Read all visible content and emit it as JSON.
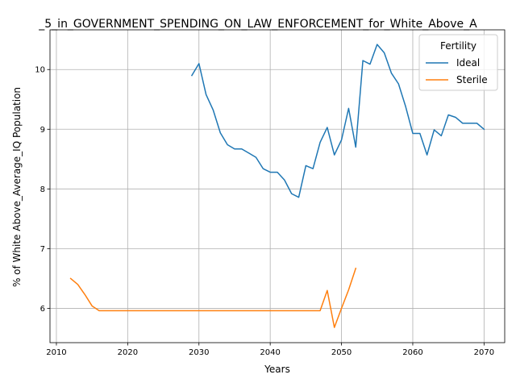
{
  "chart_data": {
    "type": "line",
    "title": "_5_in_GOVERNMENT_SPENDING_ON_LAW_ENFORCEMENT_for_White_Above_A",
    "xlabel": "Years",
    "ylabel": "% of White Above_Average_IQ Population",
    "xlim": [
      2009.1,
      2072.9
    ],
    "ylim": [
      5.425,
      10.665
    ],
    "xticks": [
      2010,
      2020,
      2030,
      2040,
      2050,
      2060,
      2070
    ],
    "yticks": [
      6,
      7,
      8,
      9,
      10
    ],
    "grid": true,
    "legend": {
      "title": "Fertility",
      "placement": "top-right"
    },
    "series": [
      {
        "name": "Ideal",
        "color": "#1f77b4",
        "x": [
          2029,
          2030,
          2031,
          2032,
          2033,
          2034,
          2035,
          2036,
          2037,
          2038,
          2039,
          2040,
          2041,
          2042,
          2043,
          2044,
          2045,
          2046,
          2047,
          2048,
          2049,
          2050,
          2051,
          2052,
          2053,
          2054,
          2055,
          2056,
          2057,
          2058,
          2059,
          2060,
          2061,
          2062,
          2063,
          2064,
          2065,
          2066,
          2067,
          2068,
          2069,
          2070
        ],
        "y": [
          9.9,
          10.1,
          9.58,
          9.32,
          8.94,
          8.74,
          8.67,
          8.67,
          8.6,
          8.53,
          8.34,
          8.28,
          8.28,
          8.15,
          7.92,
          7.86,
          8.39,
          8.34,
          8.78,
          9.03,
          8.57,
          8.82,
          9.35,
          8.7,
          10.15,
          10.09,
          10.42,
          10.28,
          9.94,
          9.76,
          9.38,
          8.93,
          8.93,
          8.57,
          8.99,
          8.89,
          9.24,
          9.2,
          9.1,
          9.1,
          9.1,
          9.0
        ]
      },
      {
        "name": "Sterile",
        "color": "#ff7f0e",
        "x": [
          2012,
          2013,
          2014,
          2015,
          2016,
          2017,
          2018,
          2019,
          2020,
          2021,
          2022,
          2023,
          2024,
          2025,
          2026,
          2027,
          2028,
          2029,
          2030,
          2031,
          2032,
          2033,
          2034,
          2035,
          2036,
          2037,
          2038,
          2039,
          2040,
          2041,
          2042,
          2043,
          2044,
          2045,
          2046,
          2047,
          2048,
          2049,
          2050,
          2051,
          2052
        ],
        "y": [
          6.5,
          6.4,
          6.23,
          6.04,
          5.96,
          5.96,
          5.96,
          5.96,
          5.96,
          5.96,
          5.96,
          5.96,
          5.96,
          5.96,
          5.96,
          5.96,
          5.96,
          5.96,
          5.96,
          5.96,
          5.96,
          5.96,
          5.96,
          5.96,
          5.96,
          5.96,
          5.96,
          5.96,
          5.96,
          5.96,
          5.96,
          5.96,
          5.96,
          5.96,
          5.96,
          5.96,
          6.3,
          5.68,
          6.0,
          6.31,
          6.67
        ]
      }
    ]
  }
}
